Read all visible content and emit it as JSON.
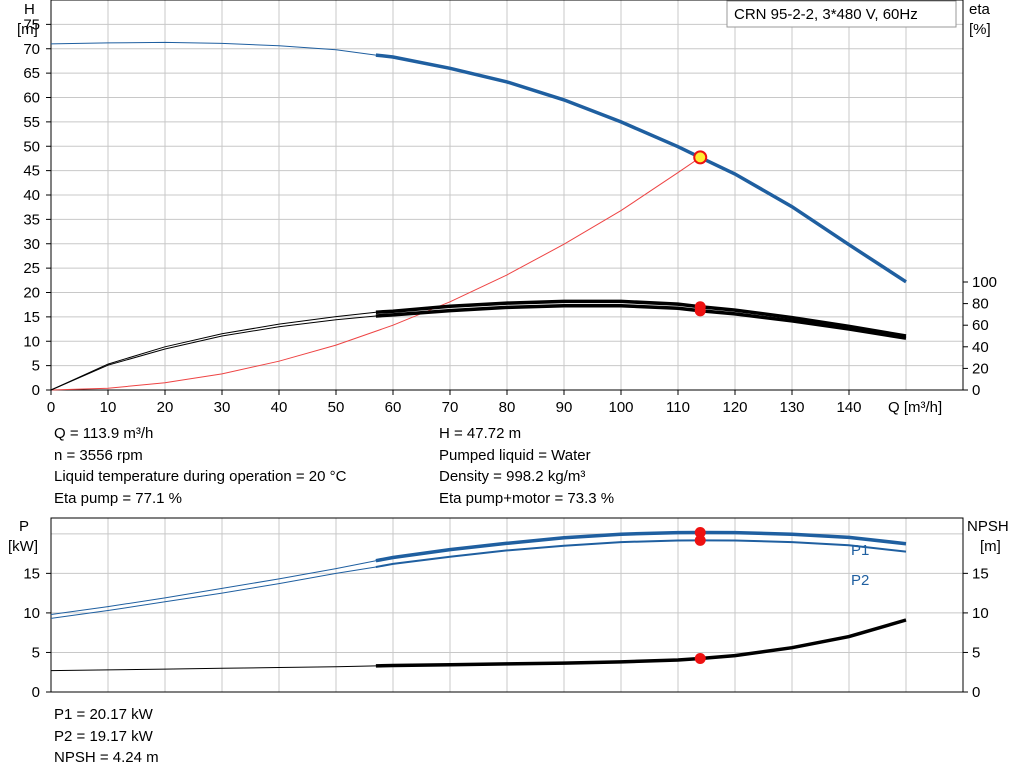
{
  "title_box": "CRN 95-2-2, 3*480 V, 60Hz",
  "colors": {
    "blue": "#1f5fa0",
    "red_curve": "#ee4444",
    "op_point": "#ee1111",
    "op_fill_yellow": "#ffee33",
    "grid": "#c8c8c8"
  },
  "upper_chart": {
    "y_label": "H",
    "y_unit": "[m]",
    "y2_label": "eta",
    "y2_unit": "[%]",
    "x_label": "Q [m³/h]"
  },
  "lower_chart": {
    "y_label": "P",
    "y_unit": "[kW]",
    "y2_label": "NPSH",
    "y2_unit": "[m]",
    "series_labels": {
      "p1": "P1",
      "p2": "P2"
    }
  },
  "info_left": [
    "Q = 113.9 m³/h",
    "n = 3556 rpm",
    "Liquid temperature during operation = 20 °C",
    "Eta pump = 77.1 %"
  ],
  "info_right": [
    "H = 47.72 m",
    "Pumped liquid = Water",
    "Density = 998.2 kg/m³",
    "Eta pump+motor = 73.3 %"
  ],
  "info_bottom": [
    "P1 = 20.17 kW",
    "P2 = 19.17 kW",
    "NPSH = 4.24 m"
  ],
  "chart_data": [
    {
      "type": "line",
      "title": "",
      "xlabel": "Q [m³/h]",
      "ylabel": "H [m]",
      "y2label": "eta [%]",
      "xlim": [
        0,
        160
      ],
      "ylim": [
        0,
        80
      ],
      "y2lim": [
        0,
        100
      ],
      "x_ticks": [
        0,
        10,
        20,
        30,
        40,
        50,
        60,
        70,
        80,
        90,
        100,
        110,
        120,
        130,
        140
      ],
      "y_ticks": [
        0,
        5,
        10,
        15,
        20,
        25,
        30,
        35,
        40,
        45,
        50,
        55,
        60,
        65,
        70,
        75
      ],
      "y2_ticks": [
        0,
        20,
        40,
        60,
        80,
        100
      ],
      "grid": true,
      "series": [
        {
          "key": "H",
          "axis": "y",
          "points": [
            [
              0,
              71
            ],
            [
              10,
              71.2
            ],
            [
              20,
              71.3
            ],
            [
              30,
              71.1
            ],
            [
              40,
              70.6
            ],
            [
              50,
              69.8
            ],
            [
              57,
              68.7
            ],
            [
              60,
              68.3
            ],
            [
              70,
              66
            ],
            [
              80,
              63.2
            ],
            [
              90,
              59.5
            ],
            [
              100,
              55
            ],
            [
              110,
              49.9
            ],
            [
              113.9,
              47.72
            ],
            [
              120,
              44.3
            ],
            [
              130,
              37.6
            ],
            [
              140,
              29.8
            ],
            [
              150,
              22.2
            ]
          ]
        },
        {
          "key": "H_system",
          "axis": "y",
          "points": [
            [
              0,
              0
            ],
            [
              10,
              0.35
            ],
            [
              20,
              1.5
            ],
            [
              30,
              3.3
            ],
            [
              40,
              5.9
            ],
            [
              50,
              9.2
            ],
            [
              60,
              13.3
            ],
            [
              70,
              18.1
            ],
            [
              80,
              23.6
            ],
            [
              90,
              29.9
            ],
            [
              100,
              36.8
            ],
            [
              110,
              44.6
            ],
            [
              113.9,
              47.72
            ]
          ]
        },
        {
          "key": "eta_pump",
          "axis": "y2",
          "points": [
            [
              0,
              0
            ],
            [
              10,
              24
            ],
            [
              20,
              40
            ],
            [
              30,
              52
            ],
            [
              40,
              61
            ],
            [
              50,
              68
            ],
            [
              57,
              72
            ],
            [
              60,
              73
            ],
            [
              70,
              77.5
            ],
            [
              80,
              80.5
            ],
            [
              90,
              82
            ],
            [
              100,
              82
            ],
            [
              110,
              79.5
            ],
            [
              113.9,
              77.1
            ],
            [
              120,
              74
            ],
            [
              130,
              67
            ],
            [
              140,
              59
            ],
            [
              150,
              50
            ]
          ]
        },
        {
          "key": "eta_pump_motor",
          "axis": "y2",
          "points": [
            [
              0,
              0
            ],
            [
              10,
              23
            ],
            [
              20,
              38
            ],
            [
              30,
              50
            ],
            [
              40,
              58.5
            ],
            [
              50,
              65
            ],
            [
              57,
              68.5
            ],
            [
              60,
              69.5
            ],
            [
              70,
              73.5
            ],
            [
              80,
              76.5
            ],
            [
              90,
              78
            ],
            [
              100,
              78
            ],
            [
              110,
              75.7
            ],
            [
              113.9,
              73.3
            ],
            [
              120,
              70.5
            ],
            [
              130,
              64
            ],
            [
              140,
              56.5
            ],
            [
              150,
              48
            ]
          ]
        }
      ],
      "operating_point": {
        "Q": 113.9,
        "H": 47.72,
        "eta_pump": 77.1,
        "eta_pump_motor": 73.3
      }
    },
    {
      "type": "line",
      "title": "",
      "xlabel": "Q [m³/h]",
      "ylabel": "P [kW]",
      "y2label": "NPSH [m]",
      "xlim": [
        0,
        160
      ],
      "ylim": [
        0,
        22
      ],
      "y2lim": [
        0,
        22
      ],
      "y_ticks": [
        0,
        5,
        10,
        15
      ],
      "y2_ticks": [
        0,
        5,
        10,
        15
      ],
      "grid": true,
      "series": [
        {
          "key": "P1",
          "axis": "y",
          "points": [
            [
              0,
              9.8
            ],
            [
              10,
              10.8
            ],
            [
              20,
              11.9
            ],
            [
              30,
              13.1
            ],
            [
              40,
              14.3
            ],
            [
              50,
              15.6
            ],
            [
              57,
              16.6
            ],
            [
              60,
              17
            ],
            [
              70,
              18
            ],
            [
              80,
              18.8
            ],
            [
              90,
              19.5
            ],
            [
              100,
              19.95
            ],
            [
              110,
              20.15
            ],
            [
              113.9,
              20.17
            ],
            [
              120,
              20.15
            ],
            [
              130,
              19.95
            ],
            [
              140,
              19.55
            ],
            [
              150,
              18.75
            ]
          ]
        },
        {
          "key": "P2",
          "axis": "y",
          "points": [
            [
              0,
              9.3
            ],
            [
              10,
              10.3
            ],
            [
              20,
              11.4
            ],
            [
              30,
              12.5
            ],
            [
              40,
              13.7
            ],
            [
              50,
              15
            ],
            [
              57,
              15.8
            ],
            [
              60,
              16.2
            ],
            [
              70,
              17.1
            ],
            [
              80,
              17.9
            ],
            [
              90,
              18.5
            ],
            [
              100,
              18.95
            ],
            [
              110,
              19.15
            ],
            [
              113.9,
              19.17
            ],
            [
              120,
              19.15
            ],
            [
              130,
              18.95
            ],
            [
              140,
              18.55
            ],
            [
              150,
              17.75
            ]
          ]
        },
        {
          "key": "NPSH",
          "axis": "y2",
          "points": [
            [
              0,
              2.7
            ],
            [
              10,
              2.8
            ],
            [
              20,
              2.9
            ],
            [
              30,
              3
            ],
            [
              40,
              3.1
            ],
            [
              50,
              3.2
            ],
            [
              57,
              3.3
            ],
            [
              60,
              3.35
            ],
            [
              70,
              3.45
            ],
            [
              80,
              3.55
            ],
            [
              90,
              3.65
            ],
            [
              100,
              3.8
            ],
            [
              110,
              4.05
            ],
            [
              113.9,
              4.24
            ],
            [
              120,
              4.6
            ],
            [
              130,
              5.6
            ],
            [
              140,
              7
            ],
            [
              150,
              9.1
            ]
          ]
        }
      ],
      "operating_point": {
        "Q": 113.9,
        "P1": 20.17,
        "P2": 19.17,
        "NPSH": 4.24
      }
    }
  ]
}
